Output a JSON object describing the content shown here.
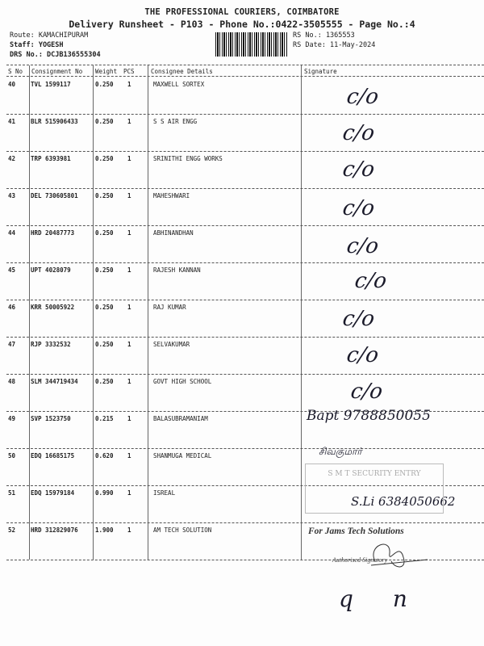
{
  "header": {
    "company": "THE PROFESSIONAL COURIERS, COIMBATORE",
    "subtitle": "Delivery Runsheet - P103 - Phone No.:0422-3505555 - Page No.:4",
    "route": "Route: KAMACHIPURAM",
    "staff": "Staff: YOGESH",
    "drs": "DRS No.: DCJB136555304",
    "rs_no": "RS No.: 1365553",
    "rs_date": "RS Date: 11-May-2024"
  },
  "columns": [
    "S No",
    "Consignment No",
    "Weight",
    "PCS",
    "Consignee Details",
    "Signature"
  ],
  "rows": [
    {
      "sno": "40",
      "cn": "TVL 1599117",
      "weight": "0.250",
      "pcs": "1",
      "consignee": "MAXWELL SORTEX",
      "sig": "c/o"
    },
    {
      "sno": "41",
      "cn": "BLR 515906433",
      "weight": "0.250",
      "pcs": "1",
      "consignee": "S S AIR ENGG",
      "sig": "c/o"
    },
    {
      "sno": "42",
      "cn": "TRP 6393981",
      "weight": "0.250",
      "pcs": "1",
      "consignee": "SRINITHI ENGG WORKS",
      "sig": "c/o"
    },
    {
      "sno": "43",
      "cn": "DEL 730605801",
      "weight": "0.250",
      "pcs": "1",
      "consignee": "MAHESHWARI",
      "sig": "c/o"
    },
    {
      "sno": "44",
      "cn": "HRD 20487773",
      "weight": "0.250",
      "pcs": "1",
      "consignee": "ABHINANDHAN",
      "sig": "c/o"
    },
    {
      "sno": "45",
      "cn": "UPT 4028079",
      "weight": "0.250",
      "pcs": "1",
      "consignee": "RAJESH KANNAN",
      "sig": "c/o"
    },
    {
      "sno": "46",
      "cn": "KRR 50005922",
      "weight": "0.250",
      "pcs": "1",
      "consignee": "RAJ KUMAR",
      "sig": "c/o"
    },
    {
      "sno": "47",
      "cn": "RJP 3332532",
      "weight": "0.250",
      "pcs": "1",
      "consignee": "SELVAKUMAR",
      "sig": "c/o"
    },
    {
      "sno": "48",
      "cn": "SLM 344719434",
      "weight": "0.250",
      "pcs": "1",
      "consignee": "GOVT HIGH SCHOOL",
      "sig": "c/o"
    },
    {
      "sno": "49",
      "cn": "SVP 1523750",
      "weight": "0.215",
      "pcs": "1",
      "consignee": "BALASUBRAMANIAM",
      "sig": "Bapt 9788850055"
    },
    {
      "sno": "50",
      "cn": "EDQ 16685175",
      "weight": "0.620",
      "pcs": "1",
      "consignee": "SHANMUGA MEDICAL",
      "sig": "சிவகுமார்"
    },
    {
      "sno": "51",
      "cn": "EDQ 15979184",
      "weight": "0.990",
      "pcs": "1",
      "consignee": "ISREAL",
      "sig": "S.Li 6384050662"
    },
    {
      "sno": "52",
      "cn": "HRD 312829076",
      "weight": "1.900",
      "pcs": "1",
      "consignee": "AM TECH SOLUTION",
      "sig": ""
    }
  ],
  "stamps": {
    "security": "S M T SECURITY ENTRY",
    "company": "For Jams Tech Solutions",
    "authorised": "Authorised Signatory"
  },
  "footer_marks": "q n"
}
